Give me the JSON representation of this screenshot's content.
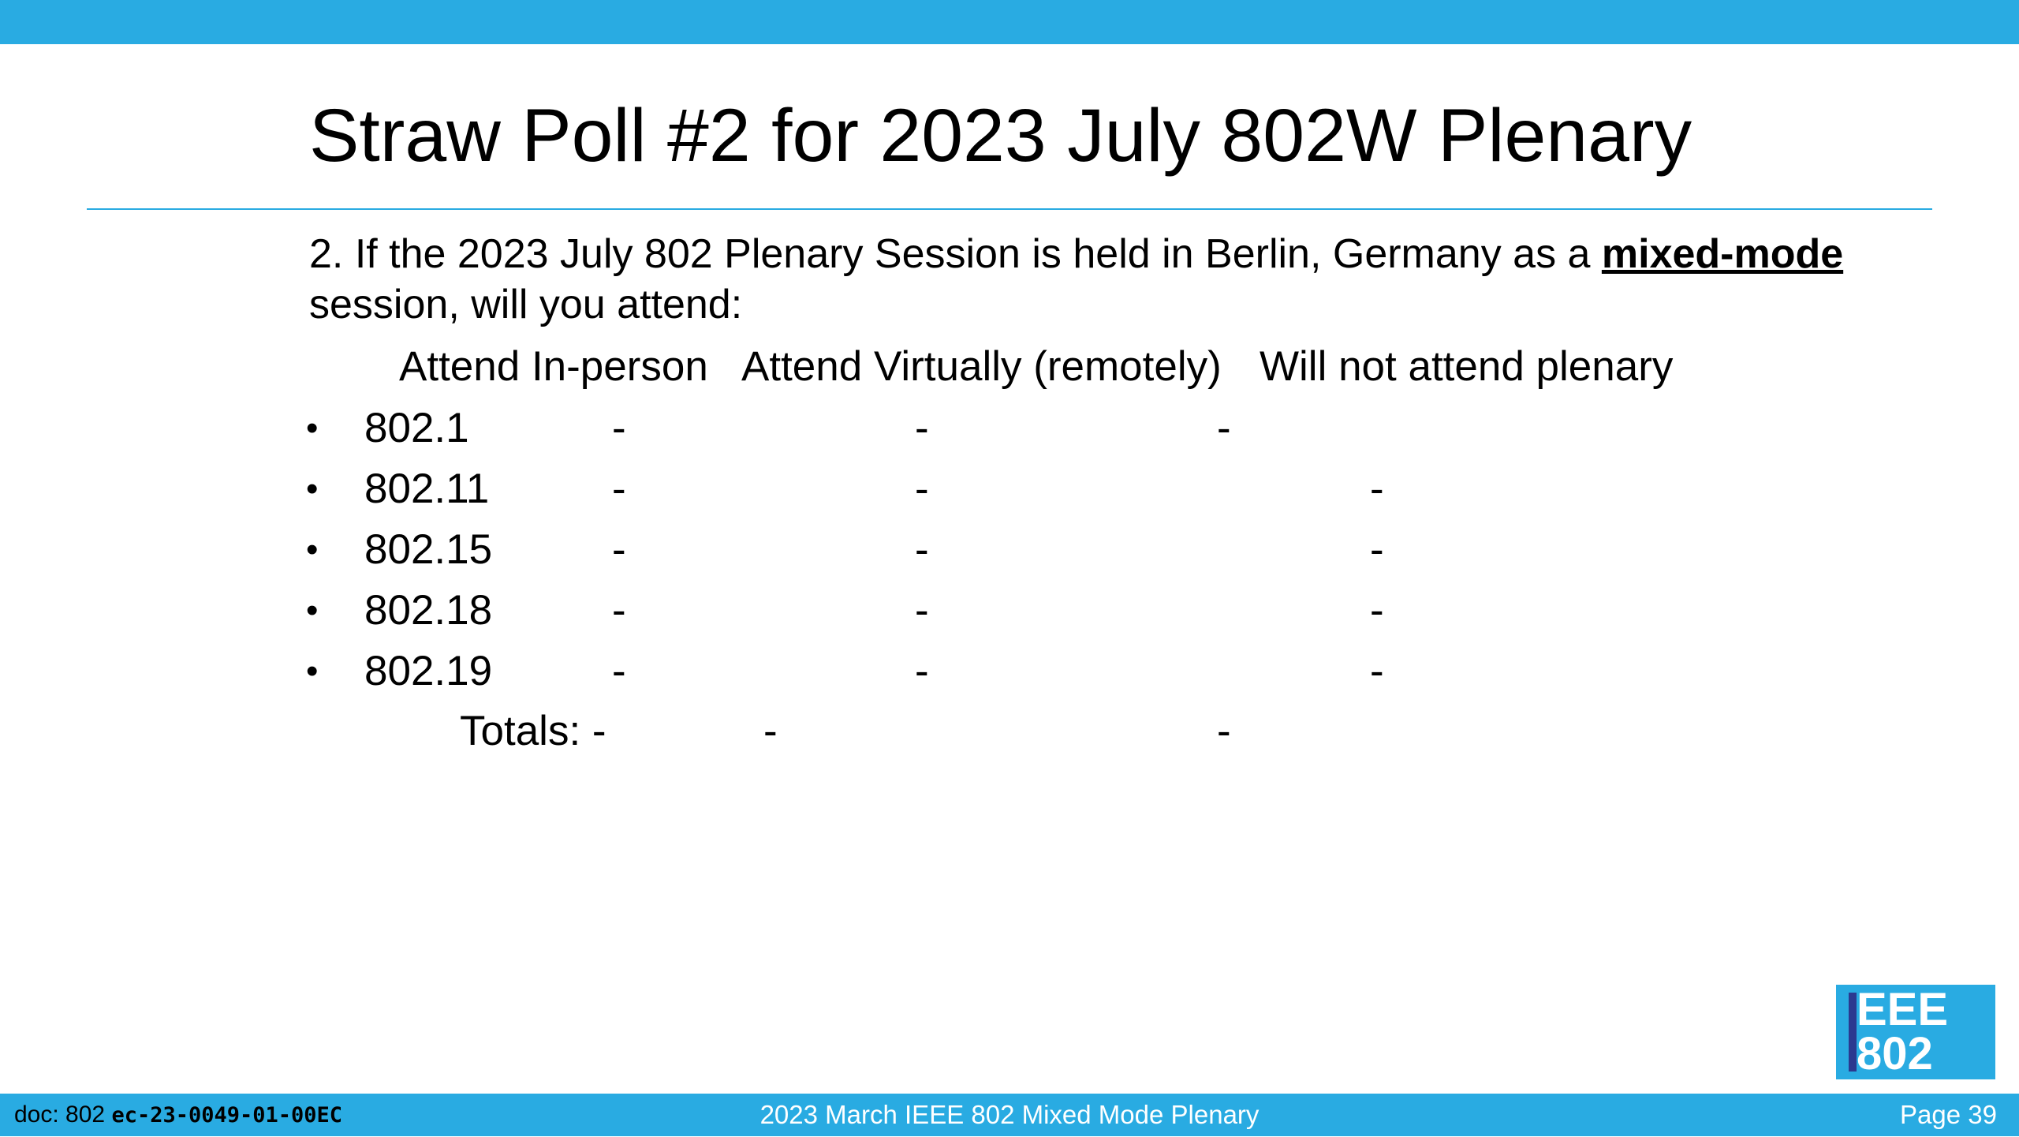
{
  "colors": {
    "accent": "#29abe2",
    "logo_bar": "#2b3990",
    "background": "#ffffff"
  },
  "slide": {
    "title": "Straw Poll #2 for 2023 July 802W Plenary",
    "question": {
      "prefix": "2. If the 2023 July 802 Plenary Session is held in Berlin, Germany as a ",
      "mode": "mixed-mode",
      "suffix": " session, will you attend:"
    },
    "columns": [
      "Attend In-person",
      "Attend Virtually (remotely)",
      "Will not attend plenary"
    ],
    "rows": [
      {
        "group": "802.1",
        "values": [
          "-",
          "-",
          "-"
        ]
      },
      {
        "group": "802.11",
        "values": [
          "-",
          "-",
          "-"
        ]
      },
      {
        "group": "802.15",
        "values": [
          "-",
          "-",
          "-"
        ]
      },
      {
        "group": "802.18",
        "values": [
          "-",
          "-",
          "-"
        ]
      },
      {
        "group": "802.19",
        "values": [
          "-",
          "-",
          "-"
        ]
      }
    ],
    "totals": {
      "label": "Totals: -",
      "values": [
        "-",
        "-"
      ]
    }
  },
  "logo": {
    "text": "EEE\n802"
  },
  "footer": {
    "doc_prefix": "doc: 802 ",
    "doc_id": "ec-23-0049-01-00EC",
    "center": "2023 March IEEE 802 Mixed Mode Plenary",
    "page": "Page 39"
  }
}
